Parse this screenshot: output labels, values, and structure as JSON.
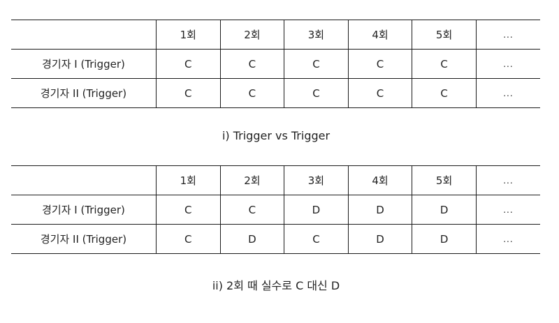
{
  "table1": {
    "header": [
      "",
      "1회",
      "2회",
      "3회",
      "4회",
      "5회",
      "..."
    ],
    "rows": [
      {
        "label": "경기자 I (Trigger)",
        "cells": [
          "C",
          "C",
          "C",
          "C",
          "C",
          "..."
        ]
      },
      {
        "label": "경기자 II (Trigger)",
        "cells": [
          "C",
          "C",
          "C",
          "C",
          "C",
          "..."
        ]
      }
    ],
    "caption": "i) Trigger vs Trigger"
  },
  "table2": {
    "header": [
      "",
      "1회",
      "2회",
      "3회",
      "4회",
      "5회",
      "..."
    ],
    "rows": [
      {
        "label": "경기자 I (Trigger)",
        "cells": [
          "C",
          "C",
          "D",
          "D",
          "D",
          "..."
        ]
      },
      {
        "label": "경기자 II (Trigger)",
        "cells": [
          "C",
          "D",
          "C",
          "D",
          "D",
          "..."
        ]
      }
    ],
    "caption": "ii) 2회 때 실수로 C 대신 D"
  }
}
